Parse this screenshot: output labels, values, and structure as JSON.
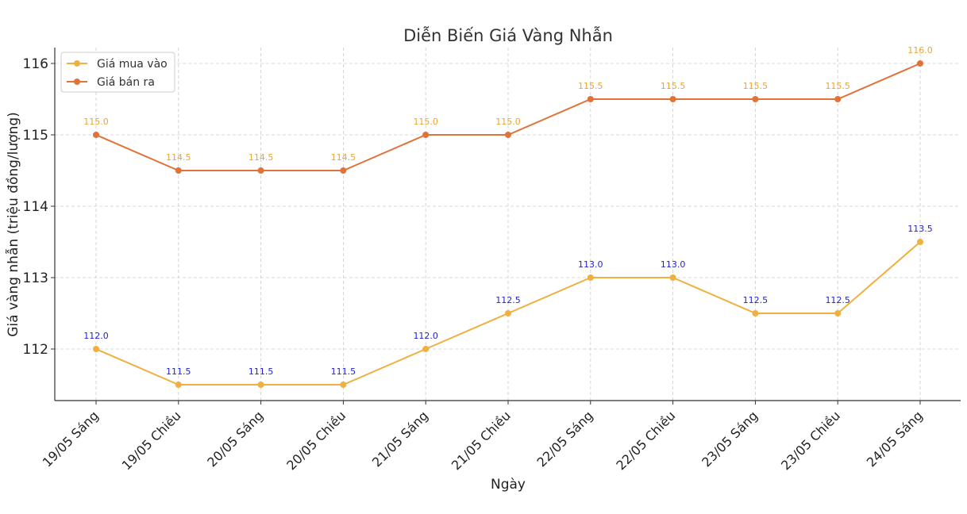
{
  "chart_data": {
    "type": "line",
    "title": "Diễn Biến Giá Vàng Nhẫn",
    "xlabel": "Ngày",
    "ylabel": "Giá vàng nhẫn (triệu đồng/lượng)",
    "categories": [
      "19/05 Sáng",
      "19/05 Chiều",
      "20/05 Sáng",
      "20/05 Chiều",
      "21/05 Sáng",
      "21/05 Chiều",
      "22/05 Sáng",
      "22/05 Chiều",
      "23/05 Sáng",
      "23/05 Chiều",
      "24/05 Sáng"
    ],
    "series": [
      {
        "name": "Giá mua vào",
        "color": "#f0b041",
        "label_color": "#1f1fd0",
        "labels": [
          "112.0",
          "111.5",
          "111.5",
          "111.5",
          "112.0",
          "112.5",
          "113.0",
          "113.0",
          "112.5",
          "112.5",
          "113.5"
        ],
        "values": [
          112.0,
          111.5,
          111.5,
          111.5,
          112.0,
          112.5,
          113.0,
          113.0,
          112.5,
          112.5,
          113.5
        ]
      },
      {
        "name": "Giá bán ra",
        "color": "#e0733a",
        "label_color": "#e8a531",
        "labels": [
          "115.0",
          "114.5",
          "114.5",
          "114.5",
          "115.0",
          "115.0",
          "115.5",
          "115.5",
          "115.5",
          "115.5",
          "116.0"
        ],
        "values": [
          115.0,
          114.5,
          114.5,
          114.5,
          115.0,
          115.0,
          115.5,
          115.5,
          115.5,
          115.5,
          116.0
        ]
      }
    ],
    "yticks": [
      "112",
      "113",
      "114",
      "115",
      "116"
    ],
    "ylim": [
      111.28,
      116.22
    ],
    "grid": true,
    "legend": "top-left"
  }
}
